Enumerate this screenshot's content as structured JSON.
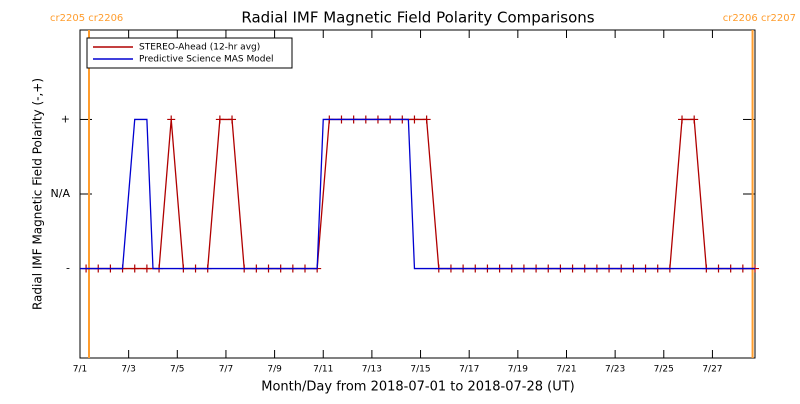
{
  "chart_data": {
    "type": "line",
    "title": "Radial IMF Magnetic Field Polarity Comparisons",
    "x_label": "Month/Day from 2018-07-01 to 2018-07-28 (UT)",
    "y_label": "Radial IMF Magnetic Field Polarity (-,+)",
    "xlim": [
      0,
      27.75
    ],
    "ylim": [
      -2.2,
      2.2
    ],
    "xticks": [
      {
        "value": 0,
        "label": "7/1"
      },
      {
        "value": 2,
        "label": "7/3"
      },
      {
        "value": 4,
        "label": "7/5"
      },
      {
        "value": 6,
        "label": "7/7"
      },
      {
        "value": 8,
        "label": "7/9"
      },
      {
        "value": 10,
        "label": "7/11"
      },
      {
        "value": 12,
        "label": "7/13"
      },
      {
        "value": 14,
        "label": "7/15"
      },
      {
        "value": 16,
        "label": "7/17"
      },
      {
        "value": 18,
        "label": "7/19"
      },
      {
        "value": 20,
        "label": "7/21"
      },
      {
        "value": 22,
        "label": "7/23"
      },
      {
        "value": 24,
        "label": "7/25"
      },
      {
        "value": 26,
        "label": "7/27"
      }
    ],
    "yticks": [
      {
        "value": -1,
        "label": "-"
      },
      {
        "value": 0,
        "label": "N/A"
      },
      {
        "value": 1,
        "label": "+"
      }
    ],
    "legend": "upper left",
    "carrington": [
      {
        "x": 0.37,
        "label": "cr2205 cr2206",
        "color": "#ff9d2e"
      },
      {
        "x": 27.65,
        "label": "cr2206 cr2207",
        "color": "#ff9d2e"
      }
    ],
    "series": [
      {
        "name": "STEREO-Ahead (12-hr avg)",
        "color": "#b00000",
        "markers": true,
        "x": [
          0.25,
          0.75,
          1.25,
          1.75,
          2.25,
          2.75,
          3.25,
          3.75,
          4.25,
          4.75,
          5.25,
          5.75,
          6.25,
          6.75,
          7.25,
          7.75,
          8.25,
          8.75,
          9.25,
          9.75,
          10.25,
          10.75,
          11.25,
          11.75,
          12.25,
          12.75,
          13.25,
          13.75,
          14.25,
          14.75,
          15.25,
          15.75,
          16.25,
          16.75,
          17.25,
          17.75,
          18.25,
          18.75,
          19.25,
          19.75,
          20.25,
          20.75,
          21.25,
          21.75,
          22.25,
          22.75,
          23.25,
          23.75,
          24.25,
          24.75,
          25.25,
          25.75,
          26.25,
          26.75,
          27.25,
          27.75
        ],
        "values": [
          -1,
          -1,
          -1,
          -1,
          -1,
          -1,
          -1,
          1,
          -1,
          -1,
          -1,
          1,
          1,
          -1,
          -1,
          -1,
          -1,
          -1,
          -1,
          -1,
          1,
          1,
          1,
          1,
          1,
          1,
          1,
          1,
          1,
          -1,
          -1,
          -1,
          -1,
          -1,
          -1,
          -1,
          -1,
          -1,
          -1,
          -1,
          -1,
          -1,
          -1,
          -1,
          -1,
          -1,
          -1,
          -1,
          -1,
          1,
          1,
          -1,
          -1,
          -1,
          -1,
          -1
        ]
      },
      {
        "name": "Predictive Science MAS Model",
        "color": "#0000d0",
        "markers": false,
        "x": [
          0,
          1.75,
          2.25,
          2.75,
          3.0,
          9.75,
          10.0,
          13.5,
          13.75,
          27.75
        ],
        "values": [
          -1,
          -1,
          1,
          1,
          -1,
          -1,
          1,
          1,
          -1,
          -1
        ]
      }
    ]
  }
}
